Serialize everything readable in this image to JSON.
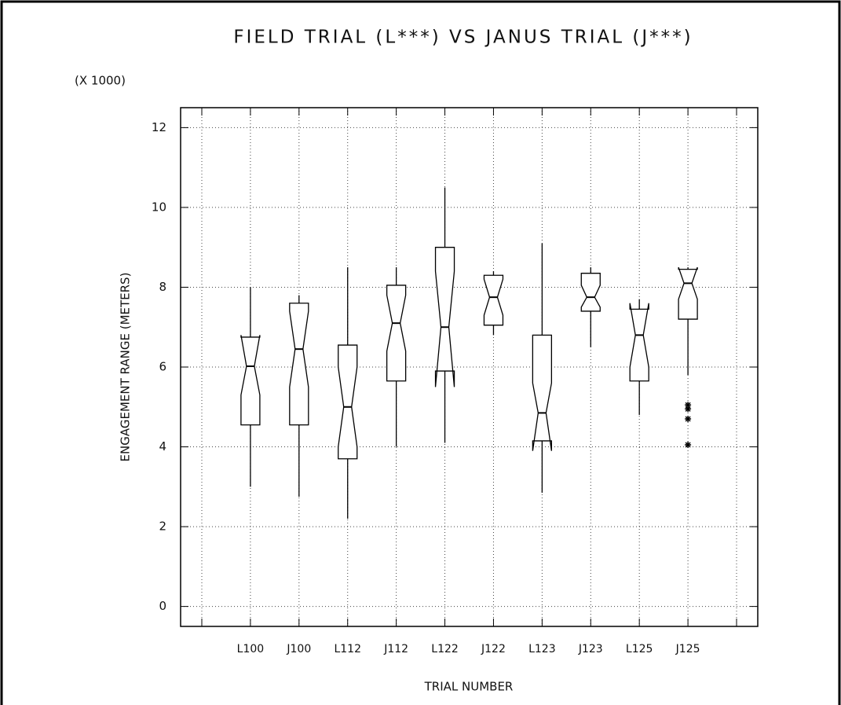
{
  "chart_data": {
    "type": "box",
    "title": "FIELD TRIAL (L***) VS JANUS TRIAL (J***)",
    "y_multiplier": "(X 1000)",
    "y_label": "ENGAGEMENT RANGE (METERS)",
    "x_label": "TRIAL NUMBER",
    "categories": [
      null,
      "L100",
      "J100",
      "L112",
      "J112",
      "L122",
      "J122",
      "L123",
      "J123",
      "L125",
      "J125",
      null
    ],
    "boxes": [
      null,
      {
        "min": 3.0,
        "q1": 4.55,
        "median": 6.02,
        "q3": 6.75,
        "max": 8.0,
        "notch_low": 5.3,
        "notch_high": 6.8
      },
      {
        "min": 2.75,
        "q1": 4.55,
        "median": 6.45,
        "q3": 7.6,
        "max": 7.8,
        "notch_low": 5.5,
        "notch_high": 7.4
      },
      {
        "min": 2.2,
        "q1": 3.7,
        "median": 5.0,
        "q3": 6.55,
        "max": 8.5,
        "notch_low": 4.0,
        "notch_high": 6.0
      },
      {
        "min": 4.0,
        "q1": 5.65,
        "median": 7.1,
        "q3": 8.05,
        "max": 8.5,
        "notch_low": 6.4,
        "notch_high": 7.8
      },
      {
        "min": 4.1,
        "q1": 5.9,
        "median": 7.0,
        "q3": 9.0,
        "max": 10.5,
        "notch_low": 5.5,
        "notch_high": 8.4
      },
      {
        "min": 6.8,
        "q1": 7.05,
        "median": 7.75,
        "q3": 8.3,
        "max": 8.4,
        "notch_low": 7.3,
        "notch_high": 8.2
      },
      {
        "min": 2.85,
        "q1": 4.15,
        "median": 4.85,
        "q3": 6.8,
        "max": 9.1,
        "notch_low": 3.9,
        "notch_high": 5.6
      },
      {
        "min": 6.5,
        "q1": 7.4,
        "median": 7.75,
        "q3": 8.35,
        "max": 8.5,
        "notch_low": 7.5,
        "notch_high": 8.05
      },
      {
        "min": 4.8,
        "q1": 5.65,
        "median": 6.8,
        "q3": 7.45,
        "max": 7.7,
        "notch_low": 6.0,
        "notch_high": 7.6
      },
      {
        "min": 5.8,
        "q1": 7.2,
        "median": 8.1,
        "q3": 8.45,
        "max": 8.5,
        "notch_low": 7.7,
        "notch_high": 8.5,
        "outliers": [
          5.05,
          4.95,
          4.7,
          4.05
        ]
      },
      null
    ],
    "ylim": [
      -0.5,
      12.5
    ],
    "yticks": [
      0,
      2,
      4,
      6,
      8,
      10,
      12
    ],
    "grid": true,
    "color": "#000000"
  }
}
